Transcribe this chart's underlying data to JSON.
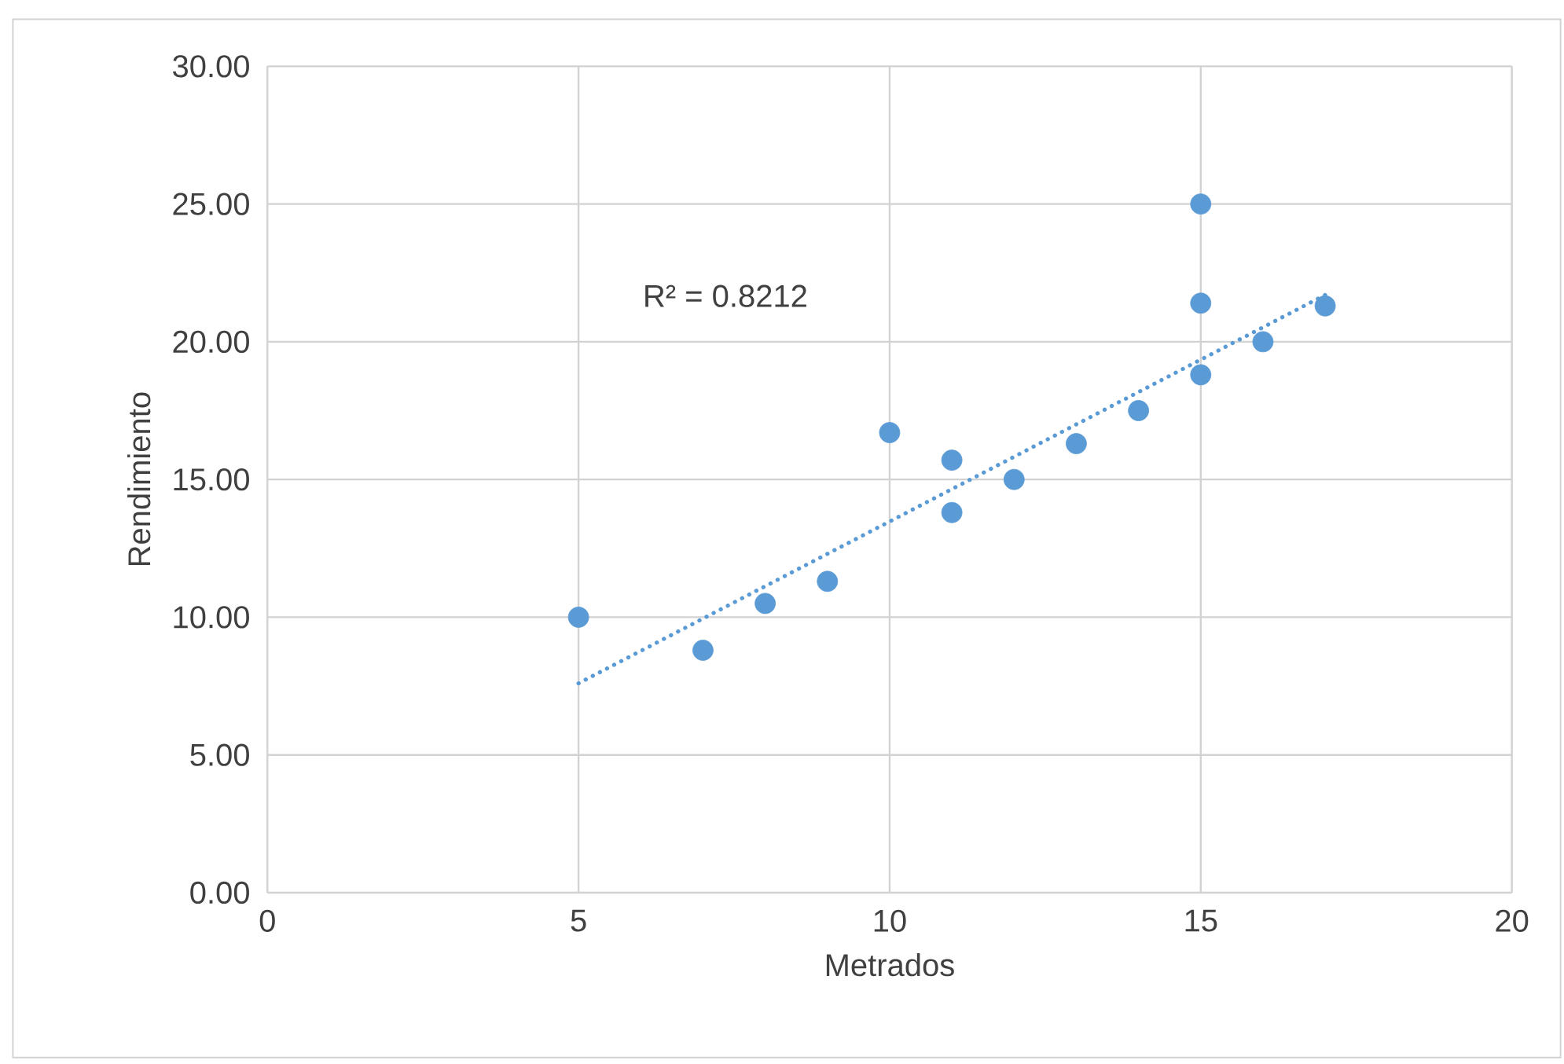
{
  "chart_data": {
    "type": "scatter",
    "xlabel": "Metrados",
    "ylabel": "Rendimiento",
    "xlim": [
      0,
      20
    ],
    "xticks": [
      0,
      5,
      10,
      15,
      20
    ],
    "ylim": [
      0,
      30
    ],
    "yticks": [
      {
        "value": 0,
        "label": "0.00"
      },
      {
        "value": 5,
        "label": "5.00"
      },
      {
        "value": 10,
        "label": "10.00"
      },
      {
        "value": 15,
        "label": "15.00"
      },
      {
        "value": 20,
        "label": "20.00"
      },
      {
        "value": 25,
        "label": "25.00"
      },
      {
        "value": 30,
        "label": "30.00"
      }
    ],
    "grid": true,
    "series": [
      {
        "color": "#5b9bd5",
        "marker": "circle",
        "x": [
          5,
          7,
          8,
          9,
          10,
          11,
          11,
          12,
          13,
          14,
          15,
          15,
          15,
          16,
          17
        ],
        "values": [
          10.0,
          8.8,
          10.5,
          11.3,
          16.7,
          15.7,
          13.8,
          15.0,
          16.3,
          17.5,
          25.0,
          21.4,
          18.8,
          20.0,
          21.3
        ]
      },
      {
        "type": "line",
        "color": "#5b9bd5",
        "line_style": "dotted",
        "marker": "none",
        "x": [
          5,
          17
        ],
        "values": [
          7.6,
          21.7
        ]
      }
    ],
    "annotations": [
      "R² = 0.8212"
    ]
  }
}
